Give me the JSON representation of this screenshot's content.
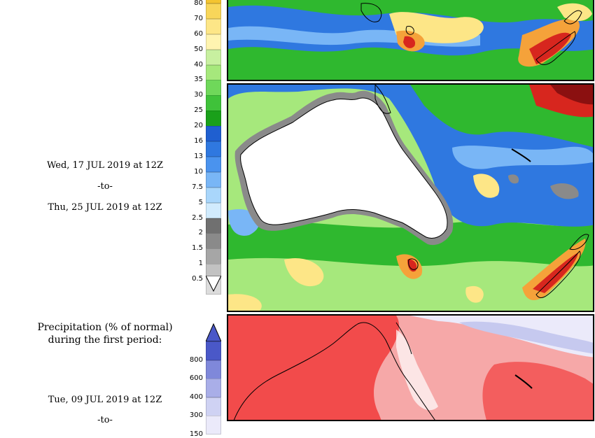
{
  "periods": {
    "second": {
      "start": "Wed, 17 JUL 2019 at 12Z",
      "separator": "-to-",
      "end": "Thu, 25 JUL 2019 at 12Z"
    },
    "first": {
      "start": "Tue, 09 JUL 2019 at 12Z",
      "separator": "-to-"
    }
  },
  "percent_panel": {
    "heading_line1": "Precipitation (% of normal)",
    "heading_line2": "during the first period:"
  },
  "precip_scale": {
    "labels": [
      "80",
      "70",
      "60",
      "50",
      "40",
      "35",
      "30",
      "25",
      "20",
      "16",
      "13",
      "10",
      "7.5",
      "5",
      "2.5",
      "2",
      "1.5",
      "1",
      "0.5"
    ],
    "colors": [
      "#f4c430",
      "#f8d65a",
      "#fde687",
      "#fff4b0",
      "#c8f0a0",
      "#a6e87c",
      "#6fd85a",
      "#3fc23a",
      "#1aa01a",
      "#1f5fd0",
      "#2f78e0",
      "#4a93ee",
      "#79b6f6",
      "#a9d6fb",
      "#d1ebfd",
      "#707070",
      "#8a8a8a",
      "#a6a6a6",
      "#c2c2c2",
      "#dcdcdc"
    ]
  },
  "percent_scale": {
    "labels": [
      "800",
      "600",
      "400",
      "300",
      "150"
    ],
    "colors": [
      "#4a58c8",
      "#7f88da",
      "#a9aee8",
      "#cfd2f3",
      "#ebeafa"
    ]
  },
  "map_colors": {
    "ocean_green": "#2fb82f",
    "light_green": "#a6e87c",
    "blue": "#2f78e0",
    "light_blue": "#79b6f6",
    "yellow": "#fde687",
    "orange": "#f5a23a",
    "red": "#d7261e",
    "dark_red": "#8b1010",
    "gray": "#8a8a8a",
    "pct_red": "#f24b4b",
    "pct_pink": "#f6a8a8",
    "pct_lavender": "#c6c9ef"
  }
}
